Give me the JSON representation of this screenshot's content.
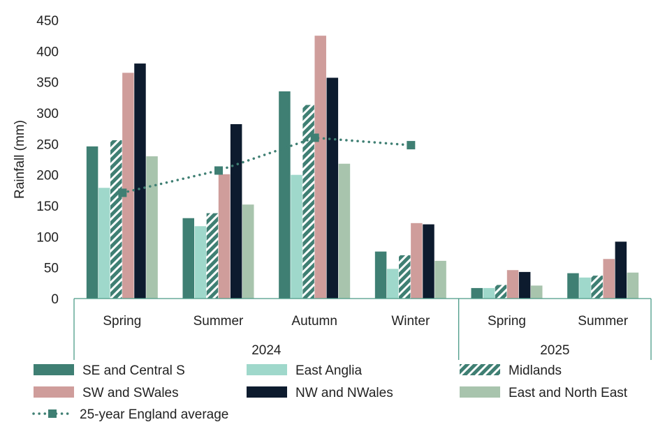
{
  "chart_data": {
    "type": "bar",
    "ylabel": "Rainfall (mm)",
    "ylim": [
      0,
      450
    ],
    "yticks": [
      "0",
      "50",
      "100",
      "150",
      "200",
      "250",
      "300",
      "350",
      "400",
      "450"
    ],
    "groups": [
      {
        "label": "2024",
        "categories": [
          "Spring",
          "Summer",
          "Autumn",
          "Winter"
        ]
      },
      {
        "label": "2025",
        "categories": [
          "Spring",
          "Summer"
        ]
      }
    ],
    "categories": [
      "Spring",
      "Summer",
      "Autumn",
      "Winter",
      "Spring",
      "Summer"
    ],
    "series": [
      {
        "name": "SE and Central S",
        "color": "#3f7f73",
        "pattern": "solid",
        "values": [
          246,
          130,
          335,
          76,
          17,
          41
        ]
      },
      {
        "name": "East Anglia",
        "color": "#9fd8cb",
        "pattern": "solid",
        "values": [
          179,
          117,
          200,
          48,
          17,
          34
        ]
      },
      {
        "name": "Midlands",
        "color": "#3f7f73",
        "pattern": "hatched",
        "values": [
          256,
          138,
          313,
          70,
          22,
          37
        ]
      },
      {
        "name": "SW and SWales",
        "color": "#cf9d9b",
        "pattern": "solid",
        "values": [
          365,
          201,
          425,
          122,
          46,
          64
        ]
      },
      {
        "name": "NW and NWales",
        "color": "#0d1b2e",
        "pattern": "solid",
        "values": [
          380,
          282,
          357,
          120,
          43,
          92
        ]
      },
      {
        "name": "East and North East",
        "color": "#a8c4ad",
        "pattern": "solid",
        "values": [
          230,
          152,
          218,
          61,
          21,
          42
        ]
      }
    ],
    "average": {
      "name": "25-year England average",
      "color": "#3f7f73",
      "values": [
        171,
        207,
        260,
        248,
        null,
        null
      ]
    },
    "axis_color": "#4a9a87",
    "grid": false,
    "legend": "bottom"
  }
}
